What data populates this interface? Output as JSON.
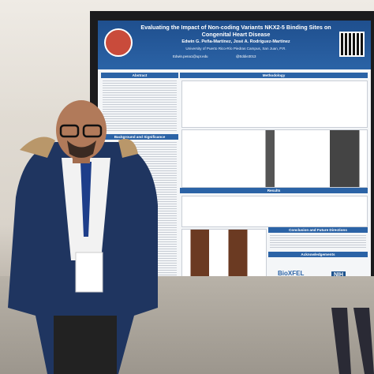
{
  "poster": {
    "title": "Evaluating the Impact of Non-coding Variants NKX2-5 Binding Sites on Congenital Heart Disease",
    "authors": "Edwin G. Peña-Martínez, José A. Rodríguez-Martínez",
    "affiliation": "University of Puerto Rico-Río Piedras Campus, San Juan, P.R.",
    "email": "Edwin.pena1@upr.edu",
    "handle": "@Eddie3013",
    "sections": [
      "Abstract",
      "Methodology",
      "Background and Significance",
      "Results",
      "Conclusion and Future Directions",
      "Acknowledgements"
    ],
    "logos": [
      "BioXFEL",
      "NIH"
    ]
  }
}
